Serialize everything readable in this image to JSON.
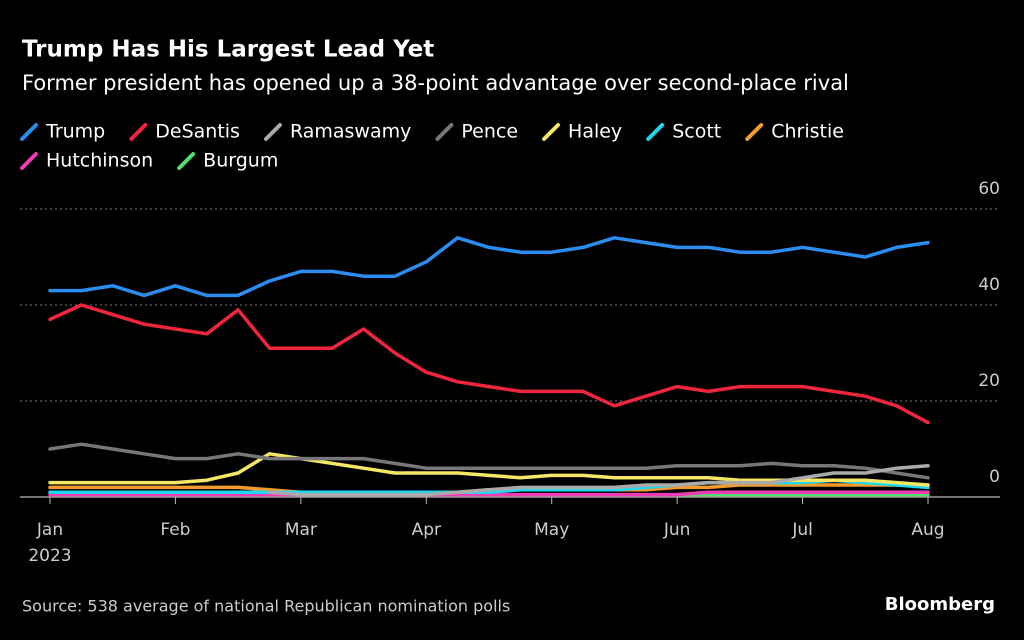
{
  "chart_data": {
    "type": "line",
    "title": "Trump Has His Largest Lead Yet",
    "subtitle": "Former president has opened up a 38-point advantage over second-place rival",
    "source": "Source: 538 average of national Republican nomination polls",
    "brand": "Bloomberg",
    "year_label": "2023",
    "categories": [
      "Jan",
      null,
      null,
      null,
      "Feb",
      null,
      null,
      null,
      "Mar",
      null,
      null,
      null,
      "Apr",
      null,
      null,
      null,
      "May",
      null,
      null,
      null,
      "Jun",
      null,
      null,
      null,
      "Jul",
      null,
      null,
      null,
      "Aug"
    ],
    "series": [
      {
        "name": "Trump",
        "color": "#2c8df0",
        "values": [
          43,
          43,
          44,
          42,
          44,
          42,
          42,
          45,
          47,
          47,
          46,
          46,
          49,
          54,
          52,
          51,
          51,
          52,
          54,
          53,
          52,
          52,
          51,
          51,
          52,
          51,
          50,
          52,
          53
        ]
      },
      {
        "name": "DeSantis",
        "color": "#f0253e",
        "values": [
          37,
          40,
          38,
          36,
          35,
          34,
          39,
          31,
          31,
          31,
          35,
          30,
          26,
          24,
          23,
          22,
          22,
          22,
          19,
          21,
          23,
          22,
          23,
          23,
          23,
          22,
          21,
          19,
          15.5
        ]
      },
      {
        "name": "Ramaswamy",
        "color": "#aaaaaa",
        "values": [
          null,
          null,
          null,
          null,
          null,
          null,
          null,
          1,
          0.5,
          0.5,
          0.5,
          0.5,
          0.5,
          1,
          1.5,
          2,
          2,
          2,
          2,
          2.5,
          2.5,
          3,
          3,
          3,
          4,
          5,
          5,
          6,
          6.5
        ]
      },
      {
        "name": "Pence",
        "color": "#777777",
        "values": [
          10,
          11,
          10,
          9,
          8,
          8,
          9,
          8,
          8,
          8,
          8,
          7,
          6,
          6,
          6,
          6,
          6,
          6,
          6,
          6,
          6.5,
          6.5,
          6.5,
          7,
          6.5,
          6.5,
          6,
          5,
          4
        ]
      },
      {
        "name": "Haley",
        "color": "#f5e663",
        "values": [
          3,
          3,
          3,
          3,
          3,
          3.5,
          5,
          9,
          8,
          7,
          6,
          5,
          5,
          5,
          4.5,
          4,
          4.5,
          4.5,
          4,
          4,
          4,
          4,
          3.5,
          3.5,
          3.5,
          3.5,
          3.5,
          3,
          2.5
        ]
      },
      {
        "name": "Scott",
        "color": "#1fd8f0",
        "values": [
          1,
          1,
          1,
          1,
          1,
          1,
          1,
          1,
          1,
          1,
          1,
          1,
          1,
          1,
          1,
          1.5,
          1.5,
          1.5,
          1.5,
          2,
          2.5,
          3,
          3,
          3,
          3,
          3.5,
          3,
          2.5,
          2
        ]
      },
      {
        "name": "Christie",
        "color": "#f39a2c",
        "values": [
          2,
          2,
          2,
          2,
          2,
          2,
          2,
          1.5,
          1,
          1,
          1,
          1,
          1,
          1,
          1.5,
          1.5,
          1.5,
          1.5,
          1.5,
          1.5,
          2,
          2,
          2.5,
          2.5,
          2.5,
          2.5,
          2.5,
          2.5,
          2.5
        ]
      },
      {
        "name": "Hutchinson",
        "color": "#f03cb4",
        "values": [
          0.5,
          0.5,
          0.5,
          0.5,
          0.5,
          0.5,
          0.5,
          0.5,
          0.5,
          0.5,
          0.5,
          0.5,
          0.5,
          0.5,
          0.5,
          0.5,
          0.5,
          0.5,
          0.5,
          0.5,
          0.5,
          1,
          1,
          1,
          1,
          1,
          1,
          1,
          1
        ]
      },
      {
        "name": "Burgum",
        "color": "#4ee06a",
        "values": [
          null,
          null,
          null,
          null,
          null,
          null,
          null,
          null,
          null,
          null,
          null,
          null,
          null,
          null,
          null,
          null,
          null,
          null,
          null,
          null,
          0.5,
          0.5,
          0.5,
          0.5,
          0.5,
          0.5,
          0.5,
          0.5,
          0.5
        ]
      }
    ],
    "ylim": [
      0,
      60
    ],
    "yticks": [
      0,
      20,
      40,
      60
    ],
    "grid": true,
    "legend": "top"
  }
}
